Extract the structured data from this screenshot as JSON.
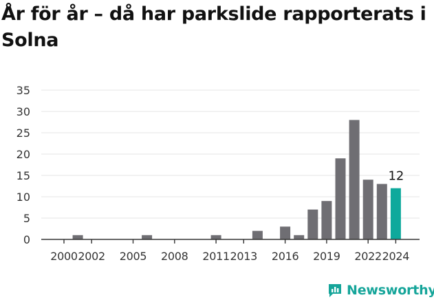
{
  "title": "År för år – då har parkslide rapporterats i Solna",
  "brand": {
    "name": "Newsworthy",
    "icon": "newsworthy-logo-icon",
    "color": "#16a59a"
  },
  "chart_data": {
    "type": "bar",
    "title": "År för år – då har parkslide rapporterats i Solna",
    "xlabel": "",
    "ylabel": "",
    "ylim": [
      0,
      35
    ],
    "yticks": [
      "0",
      "5",
      "10",
      "15",
      "20",
      "25",
      "30",
      "35"
    ],
    "xticks": [
      "2000",
      "2002",
      "2005",
      "2008",
      "2011",
      "2013",
      "2016",
      "2019",
      "2022",
      "2024"
    ],
    "grid": true,
    "bar_color": "#6f6e73",
    "highlight_color": "#0ea99c",
    "categories": [
      2000,
      2001,
      2002,
      2003,
      2004,
      2005,
      2006,
      2007,
      2008,
      2009,
      2010,
      2011,
      2012,
      2013,
      2014,
      2015,
      2016,
      2017,
      2018,
      2019,
      2020,
      2021,
      2022,
      2023,
      2024
    ],
    "values": [
      0,
      1,
      0,
      0,
      0,
      0,
      1,
      0,
      0,
      0,
      0,
      1,
      0,
      0,
      2,
      0,
      3,
      1,
      7,
      9,
      19,
      28,
      14,
      13,
      12
    ],
    "highlight": {
      "category": 2024,
      "label": "12"
    }
  }
}
